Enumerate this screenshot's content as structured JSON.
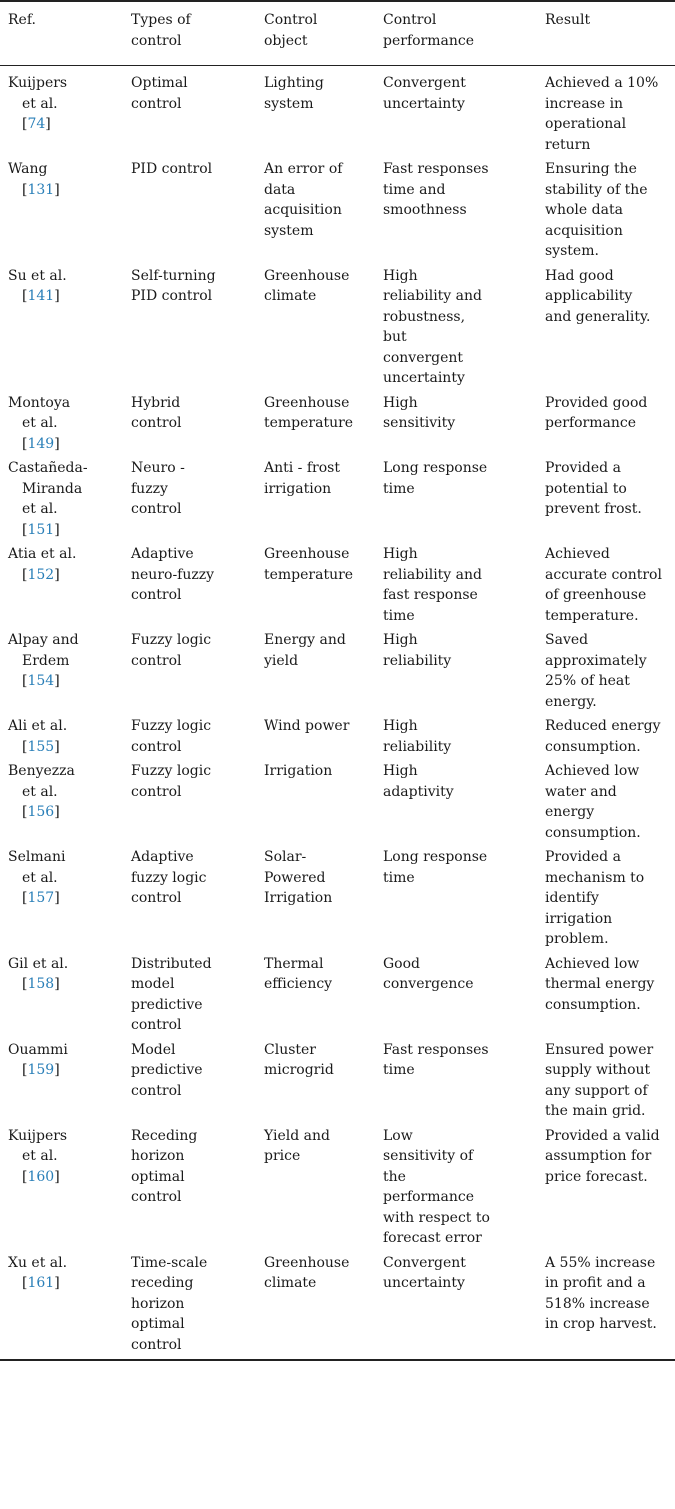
{
  "headers": [
    "Ref.",
    "Types of\ncontrol",
    "Control\nobject",
    "Control\nperformance",
    "Result"
  ],
  "rows": [
    {
      "ref_first": "Kuijpers",
      "ref_rest": "et al.",
      "ref_num": "74",
      "type": "Optimal\ncontrol",
      "object": "Lighting\nsystem",
      "performance": "Convergent\nuncertainty",
      "result": "Achieved a 10%\nincrease in\noperational\nreturn"
    },
    {
      "ref_first": "Wang",
      "ref_rest": "",
      "ref_num": "131",
      "type": "PID control",
      "object": "An error of\ndata\nacquisition\nsystem",
      "performance": "Fast responses\ntime and\nsmoothness",
      "result": "Ensuring the\nstability of the\nwhole data\nacquisition\nsystem."
    },
    {
      "ref_first": "Su et al.",
      "ref_rest": "",
      "ref_num": "141",
      "type": "Self-turning\nPID control",
      "object": "Greenhouse\nclimate",
      "performance": "High\nreliability and\nrobustness,\nbut\nconvergent\nuncertainty",
      "result": "Had good\napplicability\nand generality."
    },
    {
      "ref_first": "Montoya",
      "ref_rest": "et al.",
      "ref_num": "149",
      "type": "Hybrid\ncontrol",
      "object": "Greenhouse\ntemperature",
      "performance": "High\nsensitivity",
      "result": "Provided good\nperformance"
    },
    {
      "ref_first": "Castañeda-",
      "ref_rest": "Miranda\net al.",
      "ref_num": "151",
      "type": "Neuro -\nfuzzy\ncontrol",
      "object": "Anti - frost\nirrigation",
      "performance": "Long response\ntime",
      "result": "Provided a\npotential to\nprevent frost."
    },
    {
      "ref_first": "Atia et al.",
      "ref_rest": "",
      "ref_num": "152",
      "type": "Adaptive\nneuro-fuzzy\ncontrol",
      "object": "Greenhouse\ntemperature",
      "performance": "High\nreliability and\nfast response\ntime",
      "result": "Achieved\naccurate control\nof greenhouse\ntemperature."
    },
    {
      "ref_first": "Alpay and",
      "ref_rest": "Erdem",
      "ref_num": "154",
      "type": "Fuzzy logic\ncontrol",
      "object": "Energy and\nyield",
      "performance": "High\nreliability",
      "result": "Saved\napproximately\n25% of heat\nenergy."
    },
    {
      "ref_first": "Ali et al.",
      "ref_rest": "",
      "ref_num": "155",
      "type": "Fuzzy logic\ncontrol",
      "object": "Wind power",
      "performance": "High\nreliability",
      "result": "Reduced energy\nconsumption."
    },
    {
      "ref_first": "Benyezza",
      "ref_rest": "et al.",
      "ref_num": "156",
      "type": "Fuzzy logic\ncontrol",
      "object": "Irrigation",
      "performance": "High\nadaptivity",
      "result": "Achieved low\nwater and\nenergy\nconsumption."
    },
    {
      "ref_first": "Selmani",
      "ref_rest": "et al.",
      "ref_num": "157",
      "type": "Adaptive\nfuzzy logic\ncontrol",
      "object": "Solar-\nPowered\nIrrigation",
      "performance": "Long response\ntime",
      "result": "Provided a\nmechanism to\nidentify\nirrigation\nproblem."
    },
    {
      "ref_first": "Gil et al.",
      "ref_rest": "",
      "ref_num": "158",
      "type": "Distributed\nmodel\npredictive\ncontrol",
      "object": "Thermal\nefficiency",
      "performance": "Good\nconvergence",
      "result": "Achieved low\nthermal energy\nconsumption."
    },
    {
      "ref_first": "Ouammi",
      "ref_rest": "",
      "ref_num": "159",
      "type": "Model\npredictive\ncontrol",
      "object": "Cluster\nmicrogrid",
      "performance": "Fast responses\ntime",
      "result": "Ensured power\nsupply without\nany support of\nthe main grid."
    },
    {
      "ref_first": "Kuijpers",
      "ref_rest": "et al.",
      "ref_num": "160",
      "type": "Receding\nhorizon\noptimal\ncontrol",
      "object": "Yield and\nprice",
      "performance": "Low\nsensitivity of\nthe\nperformance\nwith respect to\nforecast error",
      "result": "Provided a valid\nassumption for\nprice forecast."
    },
    {
      "ref_first": "Xu et al.",
      "ref_rest": "",
      "ref_num": "161",
      "type": "Time-scale\nreceding\nhorizon\noptimal\ncontrol",
      "object": "Greenhouse\nclimate",
      "performance": "Convergent\nuncertainty",
      "result": "A 55% increase\nin profit and a\n518% increase\nin crop harvest."
    }
  ]
}
